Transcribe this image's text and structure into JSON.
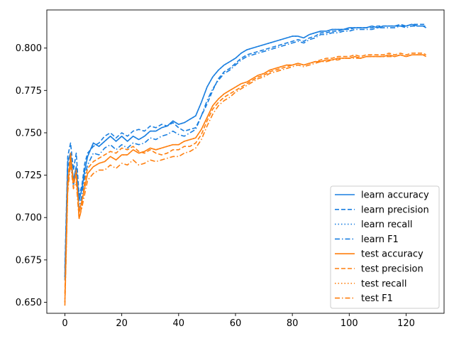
{
  "chart_data": {
    "type": "line",
    "title": "",
    "xlabel": "",
    "ylabel": "",
    "xlim": [
      -6.35,
      133.35
    ],
    "ylim": [
      0.6435,
      0.8225
    ],
    "xticks": [
      0,
      20,
      40,
      60,
      80,
      100,
      120
    ],
    "yticks": [
      0.65,
      0.675,
      0.7,
      0.725,
      0.75,
      0.775,
      0.8
    ],
    "xtick_labels": [
      "0",
      "20",
      "40",
      "60",
      "80",
      "100",
      "120"
    ],
    "ytick_labels": [
      "0.650",
      "0.675",
      "0.700",
      "0.725",
      "0.750",
      "0.775",
      "0.800"
    ],
    "grid": false,
    "legend_position": "lower-right",
    "colors": {
      "learn": "#1f77b4",
      "learn_bright": "#1a7fe0",
      "test": "#ff7f0e"
    },
    "series": [
      {
        "name": "learn accuracy",
        "group": "learn",
        "style": "solid",
        "x": [
          0,
          1,
          2,
          3,
          4,
          5,
          6,
          7,
          8,
          10,
          12,
          14,
          16,
          18,
          20,
          22,
          24,
          26,
          28,
          30,
          32,
          34,
          36,
          38,
          40,
          42,
          44,
          46,
          48,
          50,
          52,
          54,
          56,
          58,
          60,
          62,
          64,
          66,
          68,
          70,
          72,
          74,
          76,
          78,
          80,
          82,
          84,
          86,
          88,
          90,
          92,
          94,
          96,
          98,
          100,
          102,
          104,
          106,
          108,
          110,
          112,
          114,
          116,
          118,
          120,
          122,
          124,
          126,
          127
        ],
        "y": [
          0.665,
          0.733,
          0.738,
          0.722,
          0.73,
          0.71,
          0.717,
          0.728,
          0.736,
          0.744,
          0.742,
          0.745,
          0.748,
          0.745,
          0.748,
          0.745,
          0.748,
          0.746,
          0.748,
          0.751,
          0.751,
          0.753,
          0.754,
          0.757,
          0.755,
          0.756,
          0.758,
          0.76,
          0.768,
          0.777,
          0.783,
          0.787,
          0.79,
          0.792,
          0.794,
          0.797,
          0.799,
          0.8,
          0.801,
          0.802,
          0.803,
          0.804,
          0.805,
          0.806,
          0.807,
          0.807,
          0.806,
          0.808,
          0.809,
          0.81,
          0.81,
          0.811,
          0.811,
          0.811,
          0.812,
          0.812,
          0.812,
          0.812,
          0.813,
          0.812,
          0.813,
          0.813,
          0.813,
          0.813,
          0.813,
          0.814,
          0.813,
          0.813,
          0.812
        ]
      },
      {
        "name": "learn precision",
        "group": "learn",
        "style": "dashed",
        "x": [
          0,
          1,
          2,
          3,
          4,
          5,
          6,
          7,
          8,
          10,
          12,
          14,
          16,
          18,
          20,
          22,
          24,
          26,
          28,
          30,
          32,
          34,
          36,
          38,
          40,
          42,
          44,
          46,
          48,
          50,
          52,
          54,
          56,
          58,
          60,
          62,
          64,
          66,
          68,
          70,
          72,
          74,
          76,
          78,
          80,
          82,
          84,
          86,
          88,
          90,
          92,
          94,
          96,
          98,
          100,
          102,
          104,
          106,
          108,
          110,
          112,
          114,
          116,
          118,
          120,
          122,
          124,
          126,
          127
        ],
        "y": [
          0.67,
          0.736,
          0.744,
          0.728,
          0.738,
          0.713,
          0.719,
          0.732,
          0.738,
          0.742,
          0.744,
          0.748,
          0.75,
          0.747,
          0.75,
          0.748,
          0.751,
          0.752,
          0.751,
          0.754,
          0.753,
          0.755,
          0.754,
          0.756,
          0.753,
          0.751,
          0.752,
          0.753,
          0.76,
          0.767,
          0.775,
          0.782,
          0.786,
          0.788,
          0.791,
          0.794,
          0.796,
          0.797,
          0.798,
          0.799,
          0.8,
          0.801,
          0.802,
          0.803,
          0.804,
          0.805,
          0.804,
          0.806,
          0.807,
          0.809,
          0.809,
          0.81,
          0.81,
          0.811,
          0.811,
          0.812,
          0.812,
          0.812,
          0.812,
          0.813,
          0.813,
          0.813,
          0.813,
          0.814,
          0.813,
          0.814,
          0.814,
          0.814,
          0.814
        ]
      },
      {
        "name": "learn recall",
        "group": "learn",
        "style": "dotted",
        "x": [
          0,
          1,
          2,
          3,
          4,
          5,
          6,
          7,
          8,
          10,
          12,
          14,
          16,
          18,
          20,
          22,
          24,
          26,
          28,
          30,
          32,
          34,
          36,
          38,
          40,
          42,
          44,
          46,
          48,
          50,
          52,
          54,
          56,
          58,
          60,
          62,
          64,
          66,
          68,
          70,
          72,
          74,
          76,
          78,
          80,
          82,
          84,
          86,
          88,
          90,
          92,
          94,
          96,
          98,
          100,
          102,
          104,
          106,
          108,
          110,
          112,
          114,
          116,
          118,
          120,
          122,
          124,
          126,
          127
        ],
        "y": [
          0.665,
          0.733,
          0.738,
          0.722,
          0.73,
          0.71,
          0.717,
          0.728,
          0.736,
          0.744,
          0.742,
          0.745,
          0.748,
          0.745,
          0.748,
          0.745,
          0.748,
          0.746,
          0.748,
          0.751,
          0.751,
          0.753,
          0.754,
          0.757,
          0.755,
          0.756,
          0.758,
          0.76,
          0.768,
          0.777,
          0.783,
          0.787,
          0.79,
          0.792,
          0.794,
          0.797,
          0.799,
          0.8,
          0.801,
          0.802,
          0.803,
          0.804,
          0.805,
          0.806,
          0.807,
          0.807,
          0.806,
          0.808,
          0.809,
          0.81,
          0.81,
          0.811,
          0.811,
          0.811,
          0.812,
          0.812,
          0.812,
          0.812,
          0.813,
          0.812,
          0.813,
          0.813,
          0.813,
          0.813,
          0.813,
          0.814,
          0.813,
          0.813,
          0.812
        ]
      },
      {
        "name": "learn F1",
        "group": "learn",
        "style": "dashdot",
        "x": [
          0,
          1,
          2,
          3,
          4,
          5,
          6,
          7,
          8,
          10,
          12,
          14,
          16,
          18,
          20,
          22,
          24,
          26,
          28,
          30,
          32,
          34,
          36,
          38,
          40,
          42,
          44,
          46,
          48,
          50,
          52,
          54,
          56,
          58,
          60,
          62,
          64,
          66,
          68,
          70,
          72,
          74,
          76,
          78,
          80,
          82,
          84,
          86,
          88,
          90,
          92,
          94,
          96,
          98,
          100,
          102,
          104,
          106,
          108,
          110,
          112,
          114,
          116,
          118,
          120,
          122,
          124,
          126,
          127
        ],
        "y": [
          0.663,
          0.73,
          0.735,
          0.719,
          0.727,
          0.706,
          0.713,
          0.725,
          0.731,
          0.738,
          0.737,
          0.741,
          0.743,
          0.74,
          0.743,
          0.741,
          0.744,
          0.743,
          0.744,
          0.747,
          0.746,
          0.748,
          0.749,
          0.751,
          0.749,
          0.748,
          0.75,
          0.752,
          0.76,
          0.769,
          0.776,
          0.781,
          0.785,
          0.787,
          0.79,
          0.793,
          0.795,
          0.796,
          0.797,
          0.798,
          0.799,
          0.8,
          0.801,
          0.802,
          0.803,
          0.804,
          0.803,
          0.805,
          0.806,
          0.808,
          0.808,
          0.809,
          0.809,
          0.81,
          0.81,
          0.811,
          0.811,
          0.811,
          0.811,
          0.812,
          0.812,
          0.812,
          0.812,
          0.813,
          0.812,
          0.813,
          0.813,
          0.813,
          0.813
        ]
      },
      {
        "name": "test accuracy",
        "group": "test",
        "style": "solid",
        "x": [
          0,
          1,
          2,
          3,
          4,
          5,
          6,
          7,
          8,
          10,
          12,
          14,
          16,
          18,
          20,
          22,
          24,
          26,
          28,
          30,
          32,
          34,
          36,
          38,
          40,
          42,
          44,
          46,
          48,
          50,
          52,
          54,
          56,
          58,
          60,
          62,
          64,
          66,
          68,
          70,
          72,
          74,
          76,
          78,
          80,
          82,
          84,
          86,
          88,
          90,
          92,
          94,
          96,
          98,
          100,
          102,
          104,
          106,
          108,
          110,
          112,
          114,
          116,
          118,
          120,
          122,
          124,
          126,
          127
        ],
        "y": [
          0.65,
          0.718,
          0.736,
          0.721,
          0.725,
          0.703,
          0.71,
          0.718,
          0.726,
          0.73,
          0.732,
          0.733,
          0.736,
          0.734,
          0.737,
          0.737,
          0.74,
          0.738,
          0.739,
          0.741,
          0.74,
          0.741,
          0.742,
          0.743,
          0.743,
          0.745,
          0.746,
          0.747,
          0.752,
          0.759,
          0.766,
          0.77,
          0.773,
          0.775,
          0.777,
          0.779,
          0.78,
          0.782,
          0.784,
          0.785,
          0.787,
          0.788,
          0.789,
          0.79,
          0.79,
          0.791,
          0.79,
          0.791,
          0.792,
          0.792,
          0.793,
          0.793,
          0.794,
          0.794,
          0.794,
          0.795,
          0.794,
          0.795,
          0.795,
          0.795,
          0.795,
          0.796,
          0.795,
          0.796,
          0.795,
          0.796,
          0.796,
          0.796,
          0.795
        ]
      },
      {
        "name": "test precision",
        "group": "test",
        "style": "dashed",
        "x": [
          0,
          1,
          2,
          3,
          4,
          5,
          6,
          7,
          8,
          10,
          12,
          14,
          16,
          18,
          20,
          22,
          24,
          26,
          28,
          30,
          32,
          34,
          36,
          38,
          40,
          42,
          44,
          46,
          48,
          50,
          52,
          54,
          56,
          58,
          60,
          62,
          64,
          66,
          68,
          70,
          72,
          74,
          76,
          78,
          80,
          82,
          84,
          86,
          88,
          90,
          92,
          94,
          96,
          98,
          100,
          102,
          104,
          106,
          108,
          110,
          112,
          114,
          116,
          118,
          120,
          122,
          124,
          126,
          127
        ],
        "y": [
          0.655,
          0.722,
          0.738,
          0.718,
          0.728,
          0.699,
          0.707,
          0.722,
          0.729,
          0.733,
          0.735,
          0.737,
          0.739,
          0.738,
          0.741,
          0.74,
          0.742,
          0.739,
          0.738,
          0.74,
          0.738,
          0.737,
          0.738,
          0.74,
          0.74,
          0.742,
          0.742,
          0.744,
          0.749,
          0.757,
          0.764,
          0.768,
          0.771,
          0.773,
          0.775,
          0.777,
          0.779,
          0.781,
          0.783,
          0.784,
          0.786,
          0.787,
          0.788,
          0.789,
          0.79,
          0.791,
          0.79,
          0.791,
          0.792,
          0.793,
          0.794,
          0.794,
          0.795,
          0.795,
          0.795,
          0.796,
          0.795,
          0.796,
          0.796,
          0.796,
          0.796,
          0.797,
          0.796,
          0.797,
          0.796,
          0.797,
          0.797,
          0.797,
          0.796
        ]
      },
      {
        "name": "test recall",
        "group": "test",
        "style": "dotted",
        "x": [
          0,
          1,
          2,
          3,
          4,
          5,
          6,
          7,
          8,
          10,
          12,
          14,
          16,
          18,
          20,
          22,
          24,
          26,
          28,
          30,
          32,
          34,
          36,
          38,
          40,
          42,
          44,
          46,
          48,
          50,
          52,
          54,
          56,
          58,
          60,
          62,
          64,
          66,
          68,
          70,
          72,
          74,
          76,
          78,
          80,
          82,
          84,
          86,
          88,
          90,
          92,
          94,
          96,
          98,
          100,
          102,
          104,
          106,
          108,
          110,
          112,
          114,
          116,
          118,
          120,
          122,
          124,
          126,
          127
        ],
        "y": [
          0.65,
          0.718,
          0.736,
          0.721,
          0.725,
          0.703,
          0.71,
          0.718,
          0.726,
          0.73,
          0.732,
          0.733,
          0.736,
          0.734,
          0.737,
          0.737,
          0.74,
          0.738,
          0.739,
          0.741,
          0.74,
          0.741,
          0.742,
          0.743,
          0.743,
          0.745,
          0.746,
          0.747,
          0.752,
          0.759,
          0.766,
          0.77,
          0.773,
          0.775,
          0.777,
          0.779,
          0.78,
          0.782,
          0.784,
          0.785,
          0.787,
          0.788,
          0.789,
          0.79,
          0.79,
          0.791,
          0.79,
          0.791,
          0.792,
          0.792,
          0.793,
          0.793,
          0.794,
          0.794,
          0.794,
          0.795,
          0.794,
          0.795,
          0.795,
          0.795,
          0.795,
          0.796,
          0.795,
          0.796,
          0.795,
          0.796,
          0.796,
          0.796,
          0.795
        ]
      },
      {
        "name": "test F1",
        "group": "test",
        "style": "dashdot",
        "x": [
          0,
          1,
          2,
          3,
          4,
          5,
          6,
          7,
          8,
          10,
          12,
          14,
          16,
          18,
          20,
          22,
          24,
          26,
          28,
          30,
          32,
          34,
          36,
          38,
          40,
          42,
          44,
          46,
          48,
          50,
          52,
          54,
          56,
          58,
          60,
          62,
          64,
          66,
          68,
          70,
          72,
          74,
          76,
          78,
          80,
          82,
          84,
          86,
          88,
          90,
          92,
          94,
          96,
          98,
          100,
          102,
          104,
          106,
          108,
          110,
          112,
          114,
          116,
          118,
          120,
          122,
          124,
          126,
          127
        ],
        "y": [
          0.648,
          0.715,
          0.732,
          0.717,
          0.721,
          0.699,
          0.706,
          0.714,
          0.722,
          0.726,
          0.728,
          0.728,
          0.731,
          0.729,
          0.732,
          0.731,
          0.734,
          0.731,
          0.732,
          0.734,
          0.733,
          0.734,
          0.735,
          0.736,
          0.736,
          0.738,
          0.739,
          0.741,
          0.746,
          0.754,
          0.761,
          0.766,
          0.769,
          0.771,
          0.774,
          0.776,
          0.778,
          0.78,
          0.782,
          0.783,
          0.785,
          0.786,
          0.787,
          0.788,
          0.789,
          0.79,
          0.789,
          0.79,
          0.791,
          0.792,
          0.792,
          0.793,
          0.793,
          0.794,
          0.794,
          0.794,
          0.794,
          0.795,
          0.795,
          0.795,
          0.795,
          0.795,
          0.795,
          0.796,
          0.795,
          0.796,
          0.796,
          0.796,
          0.795
        ]
      }
    ]
  }
}
